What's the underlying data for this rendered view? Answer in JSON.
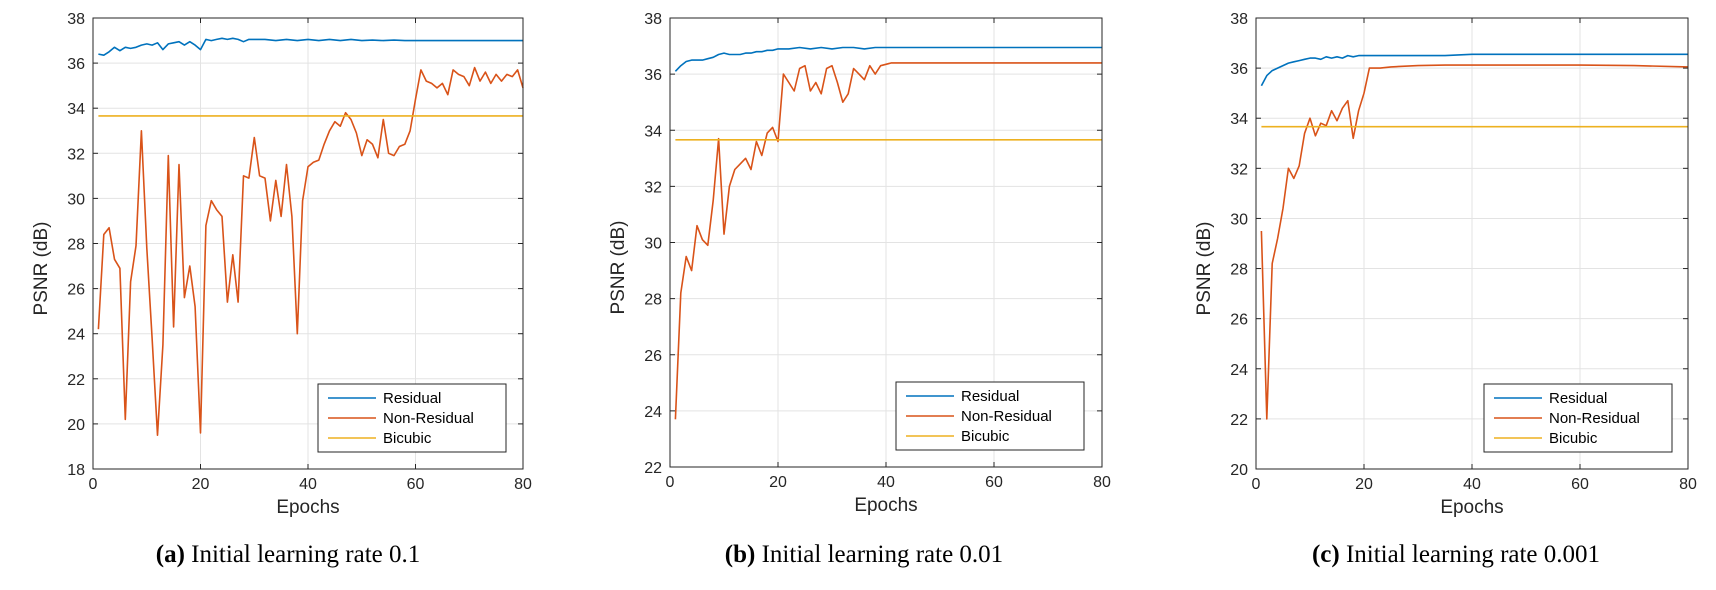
{
  "chart_data": [
    {
      "type": "line",
      "caption_letter": "(a)",
      "caption_text": "Initial learning rate 0.1",
      "xlabel": "Epochs",
      "ylabel": "PSNR (dB)",
      "xlim": [
        0,
        80
      ],
      "ylim": [
        18,
        38
      ],
      "xticks": [
        0,
        20,
        40,
        60,
        80
      ],
      "yticks": [
        18,
        20,
        22,
        24,
        26,
        28,
        30,
        32,
        34,
        36,
        38
      ],
      "grid": true,
      "legend_position": "bottom-right",
      "series": [
        {
          "name": "Residual",
          "color": "#0072BD",
          "x": [
            1,
            2,
            3,
            4,
            5,
            6,
            7,
            8,
            9,
            10,
            11,
            12,
            13,
            14,
            15,
            16,
            17,
            18,
            19,
            20,
            21,
            22,
            23,
            24,
            25,
            26,
            27,
            28,
            29,
            30,
            32,
            34,
            36,
            38,
            40,
            42,
            44,
            46,
            48,
            50,
            52,
            54,
            56,
            58,
            60,
            62,
            64,
            66,
            68,
            70,
            72,
            74,
            76,
            78,
            80
          ],
          "values": [
            36.4,
            36.35,
            36.5,
            36.7,
            36.55,
            36.7,
            36.65,
            36.7,
            36.8,
            36.85,
            36.8,
            36.9,
            36.6,
            36.85,
            36.9,
            36.95,
            36.8,
            36.95,
            36.8,
            36.6,
            37.05,
            37.0,
            37.05,
            37.1,
            37.05,
            37.1,
            37.05,
            36.95,
            37.05,
            37.05,
            37.05,
            37.0,
            37.05,
            37.0,
            37.05,
            37.0,
            37.05,
            37.0,
            37.05,
            37.0,
            37.02,
            37.0,
            37.02,
            37.0,
            37.0,
            37.0,
            37.0,
            37.0,
            37.0,
            37.0,
            37.0,
            37.0,
            37.0,
            37.0,
            37.0
          ]
        },
        {
          "name": "Non-Residual",
          "color": "#D95319",
          "x": [
            1,
            2,
            3,
            4,
            5,
            6,
            7,
            8,
            9,
            10,
            11,
            12,
            13,
            14,
            15,
            16,
            17,
            18,
            19,
            20,
            21,
            22,
            23,
            24,
            25,
            26,
            27,
            28,
            29,
            30,
            31,
            32,
            33,
            34,
            35,
            36,
            37,
            38,
            39,
            40,
            41,
            42,
            43,
            44,
            45,
            46,
            47,
            48,
            49,
            50,
            51,
            52,
            53,
            54,
            55,
            56,
            57,
            58,
            59,
            60,
            61,
            62,
            63,
            64,
            65,
            66,
            67,
            68,
            69,
            70,
            71,
            72,
            73,
            74,
            75,
            76,
            77,
            78,
            79,
            80
          ],
          "values": [
            24.2,
            28.4,
            28.7,
            27.3,
            26.9,
            20.2,
            26.3,
            27.9,
            33.0,
            27.8,
            23.8,
            19.5,
            23.5,
            31.9,
            24.3,
            31.5,
            25.6,
            27.0,
            25.2,
            19.6,
            28.8,
            29.9,
            29.5,
            29.2,
            25.4,
            27.5,
            25.4,
            31.0,
            30.9,
            32.7,
            31.0,
            30.9,
            29.0,
            30.8,
            29.2,
            31.5,
            29.2,
            24.0,
            29.9,
            31.4,
            31.6,
            31.7,
            32.4,
            33.0,
            33.4,
            33.2,
            33.8,
            33.5,
            32.9,
            31.9,
            32.6,
            32.4,
            31.8,
            33.5,
            32.0,
            31.9,
            32.3,
            32.4,
            33.0,
            34.4,
            35.7,
            35.2,
            35.1,
            34.9,
            35.1,
            34.6,
            35.7,
            35.5,
            35.4,
            35.0,
            35.8,
            35.2,
            35.6,
            35.1,
            35.5,
            35.2,
            35.5,
            35.4,
            35.7,
            34.9
          ]
        },
        {
          "name": "Bicubic",
          "color": "#EDB120",
          "x": [
            1,
            80
          ],
          "values": [
            33.66,
            33.66
          ]
        }
      ]
    },
    {
      "type": "line",
      "caption_letter": "(b)",
      "caption_text": "Initial learning rate 0.01",
      "xlabel": "Epochs",
      "ylabel": "PSNR (dB)",
      "xlim": [
        0,
        80
      ],
      "ylim": [
        22,
        38
      ],
      "xticks": [
        0,
        20,
        40,
        60,
        80
      ],
      "yticks": [
        22,
        24,
        26,
        28,
        30,
        32,
        34,
        36,
        38
      ],
      "grid": true,
      "legend_position": "bottom-right",
      "series": [
        {
          "name": "Residual",
          "color": "#0072BD",
          "x": [
            1,
            2,
            3,
            4,
            5,
            6,
            7,
            8,
            9,
            10,
            11,
            12,
            13,
            14,
            15,
            16,
            17,
            18,
            19,
            20,
            22,
            24,
            26,
            28,
            30,
            32,
            34,
            36,
            38,
            40,
            45,
            50,
            60,
            70,
            80
          ],
          "values": [
            36.1,
            36.3,
            36.45,
            36.5,
            36.5,
            36.5,
            36.55,
            36.6,
            36.7,
            36.75,
            36.7,
            36.7,
            36.7,
            36.75,
            36.75,
            36.8,
            36.8,
            36.85,
            36.85,
            36.9,
            36.9,
            36.95,
            36.9,
            36.95,
            36.9,
            36.95,
            36.95,
            36.9,
            36.95,
            36.95,
            36.95,
            36.95,
            36.95,
            36.95,
            36.95
          ]
        },
        {
          "name": "Non-Residual",
          "color": "#D95319",
          "x": [
            1,
            2,
            3,
            4,
            5,
            6,
            7,
            8,
            9,
            10,
            11,
            12,
            13,
            14,
            15,
            16,
            17,
            18,
            19,
            20,
            21,
            22,
            23,
            24,
            25,
            26,
            27,
            28,
            29,
            30,
            31,
            32,
            33,
            34,
            35,
            36,
            37,
            38,
            39,
            40,
            41,
            42,
            44,
            46,
            48,
            50,
            55,
            60,
            65,
            70,
            75,
            80
          ],
          "values": [
            23.7,
            28.2,
            29.5,
            29.0,
            30.6,
            30.1,
            29.9,
            31.5,
            33.7,
            30.3,
            32.0,
            32.6,
            32.8,
            33.0,
            32.6,
            33.6,
            33.1,
            33.9,
            34.1,
            33.6,
            36.0,
            35.7,
            35.4,
            36.2,
            36.3,
            35.4,
            35.7,
            35.3,
            36.2,
            36.3,
            35.7,
            35.0,
            35.3,
            36.2,
            36.0,
            35.8,
            36.3,
            36.0,
            36.3,
            36.35,
            36.4,
            36.4,
            36.4,
            36.4,
            36.4,
            36.4,
            36.4,
            36.4,
            36.4,
            36.4,
            36.4,
            36.4
          ]
        },
        {
          "name": "Bicubic",
          "color": "#EDB120",
          "x": [
            1,
            80
          ],
          "values": [
            33.66,
            33.66
          ]
        }
      ]
    },
    {
      "type": "line",
      "caption_letter": "(c)",
      "caption_text": "Initial learning rate 0.001",
      "xlabel": "Epochs",
      "ylabel": "PSNR (dB)",
      "xlim": [
        0,
        80
      ],
      "ylim": [
        20,
        38
      ],
      "xticks": [
        0,
        20,
        40,
        60,
        80
      ],
      "yticks": [
        20,
        22,
        24,
        26,
        28,
        30,
        32,
        34,
        36,
        38
      ],
      "grid": true,
      "legend_position": "bottom-right",
      "series": [
        {
          "name": "Residual",
          "color": "#0072BD",
          "x": [
            1,
            2,
            3,
            4,
            5,
            6,
            7,
            8,
            9,
            10,
            11,
            12,
            13,
            14,
            15,
            16,
            17,
            18,
            19,
            20,
            22,
            25,
            30,
            35,
            40,
            50,
            60,
            70,
            80
          ],
          "values": [
            35.3,
            35.7,
            35.9,
            36.0,
            36.1,
            36.2,
            36.25,
            36.3,
            36.35,
            36.4,
            36.4,
            36.35,
            36.45,
            36.4,
            36.45,
            36.4,
            36.5,
            36.45,
            36.5,
            36.5,
            36.5,
            36.5,
            36.5,
            36.5,
            36.55,
            36.55,
            36.55,
            36.55,
            36.55
          ]
        },
        {
          "name": "Non-Residual",
          "color": "#D95319",
          "x": [
            1,
            2,
            3,
            4,
            5,
            6,
            7,
            8,
            9,
            10,
            11,
            12,
            13,
            14,
            15,
            16,
            17,
            18,
            19,
            20,
            21,
            22,
            23,
            25,
            30,
            35,
            40,
            50,
            60,
            70,
            80
          ],
          "values": [
            29.5,
            22.0,
            28.2,
            29.2,
            30.4,
            32.0,
            31.6,
            32.1,
            33.4,
            34.0,
            33.3,
            33.8,
            33.7,
            34.3,
            33.9,
            34.4,
            34.7,
            33.2,
            34.3,
            35.0,
            36.0,
            36.0,
            36.0,
            36.05,
            36.1,
            36.12,
            36.12,
            36.12,
            36.12,
            36.1,
            36.05
          ]
        },
        {
          "name": "Bicubic",
          "color": "#EDB120",
          "x": [
            1,
            80
          ],
          "values": [
            33.66,
            33.66
          ]
        }
      ]
    }
  ]
}
